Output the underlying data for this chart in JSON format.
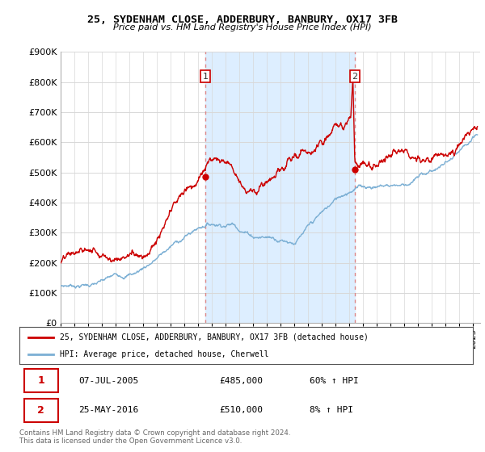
{
  "title": "25, SYDENHAM CLOSE, ADDERBURY, BANBURY, OX17 3FB",
  "subtitle": "Price paid vs. HM Land Registry's House Price Index (HPI)",
  "ylim": [
    0,
    900000
  ],
  "yticks": [
    0,
    100000,
    200000,
    300000,
    400000,
    500000,
    600000,
    700000,
    800000,
    900000
  ],
  "ytick_labels": [
    "£0",
    "£100K",
    "£200K",
    "£300K",
    "£400K",
    "£500K",
    "£600K",
    "£700K",
    "£800K",
    "£900K"
  ],
  "xlim_start": 1995.0,
  "xlim_end": 2025.5,
  "hpi_color": "#7bafd4",
  "price_color": "#cc0000",
  "transaction1_x": 2005.52,
  "transaction1_y": 485000,
  "transaction2_x": 2016.39,
  "transaction2_y": 510000,
  "vline_color": "#dd8888",
  "shade_color": "#ddeeff",
  "legend_line1": "25, SYDENHAM CLOSE, ADDERBURY, BANBURY, OX17 3FB (detached house)",
  "legend_line2": "HPI: Average price, detached house, Cherwell",
  "footer": "Contains HM Land Registry data © Crown copyright and database right 2024.\nThis data is licensed under the Open Government Licence v3.0.",
  "table_row1_date": "07-JUL-2005",
  "table_row1_price": "£485,000",
  "table_row1_hpi": "60% ↑ HPI",
  "table_row2_date": "25-MAY-2016",
  "table_row2_price": "£510,000",
  "table_row2_hpi": "8% ↑ HPI"
}
